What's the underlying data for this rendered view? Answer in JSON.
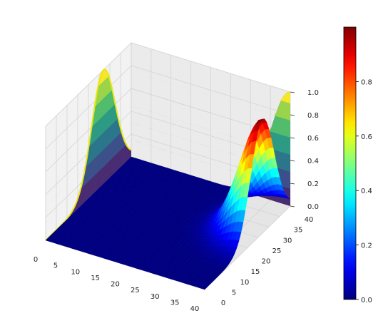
{
  "chart_data": {
    "type": "surface3d",
    "title": "",
    "xlabel": "",
    "ylabel": "",
    "zlabel": "",
    "x_range": [
      0,
      40
    ],
    "y_range": [
      0,
      40
    ],
    "z_range": [
      0,
      1
    ],
    "x_ticks": [
      "0",
      "5",
      "10",
      "15",
      "20",
      "25",
      "30",
      "35",
      "40"
    ],
    "y_ticks": [
      "0",
      "5",
      "10",
      "15",
      "20",
      "25",
      "30",
      "35",
      "40"
    ],
    "z_ticks": [
      "0.0",
      "0.2",
      "0.4",
      "0.6",
      "0.8",
      "1.0"
    ],
    "colorbar": {
      "colormap": "jet",
      "range": [
        0,
        1
      ],
      "ticks": [
        "0.0",
        "0.2",
        "0.4",
        "0.6",
        "0.8"
      ]
    },
    "surface": {
      "function": "z = exp(-((x-40)^2)/50) * exp(-((y-27)^2)/60)",
      "peak": {
        "x": 40,
        "y": 27,
        "z": 1.0
      }
    },
    "projections": [
      {
        "plane": "x = 0 wall",
        "profile_over": "y",
        "peak_at": 27,
        "peak_z": 1.0
      },
      {
        "plane": "y = 40 wall",
        "profile_over": "x",
        "peak_at": 40,
        "peak_z": 1.0
      }
    ],
    "grid": true
  }
}
